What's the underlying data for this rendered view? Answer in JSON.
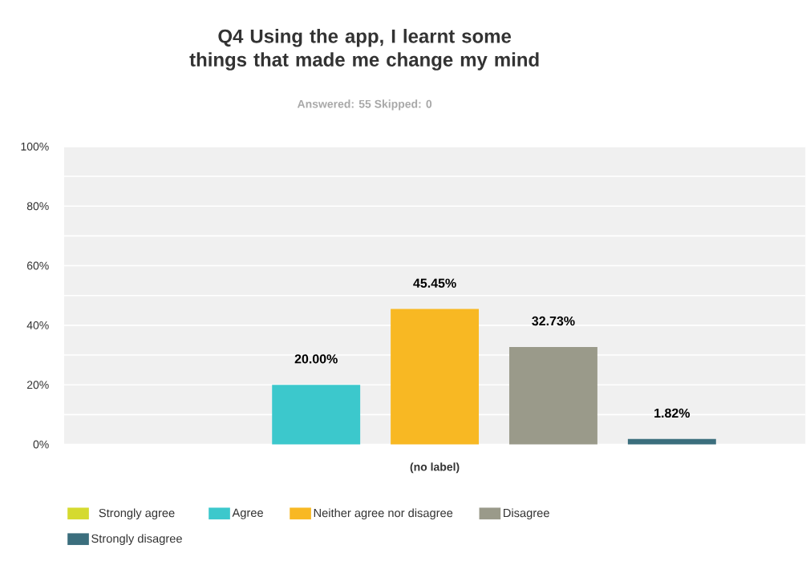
{
  "chart_data": {
    "type": "bar",
    "title": "Q4 Using the app, I learnt some things that made me change my mind",
    "subtitle": "Answered: 55    Skipped: 0",
    "categories": [
      "(no label)"
    ],
    "series": [
      {
        "name": "Strongly agree",
        "color": "#d5da2f",
        "values": [
          0
        ],
        "value_labels": [
          null
        ]
      },
      {
        "name": "Agree",
        "color": "#3cc8cc",
        "values": [
          20.0
        ],
        "value_labels": [
          "20.00%"
        ]
      },
      {
        "name": "Neither agree nor disagree",
        "color": "#f8b823",
        "values": [
          45.45
        ],
        "value_labels": [
          "45.45%"
        ]
      },
      {
        "name": "Disagree",
        "color": "#9a9a8a",
        "values": [
          32.73
        ],
        "value_labels": [
          "32.73%"
        ]
      },
      {
        "name": "Strongly disagree",
        "color": "#3b6e7d",
        "values": [
          1.82
        ],
        "value_labels": [
          "1.82%"
        ]
      }
    ],
    "ylim": [
      0,
      100
    ],
    "yticks": [
      {
        "value": 0,
        "label": "0%"
      },
      {
        "value": 10,
        "label": null
      },
      {
        "value": 20,
        "label": "20%"
      },
      {
        "value": 30,
        "label": null
      },
      {
        "value": 40,
        "label": "40%"
      },
      {
        "value": 50,
        "label": null
      },
      {
        "value": 60,
        "label": "60%"
      },
      {
        "value": 70,
        "label": null
      },
      {
        "value": 80,
        "label": "80%"
      },
      {
        "value": 90,
        "label": null
      },
      {
        "value": 100,
        "label": "100%"
      }
    ],
    "grid": "y",
    "legend": "bottom"
  }
}
